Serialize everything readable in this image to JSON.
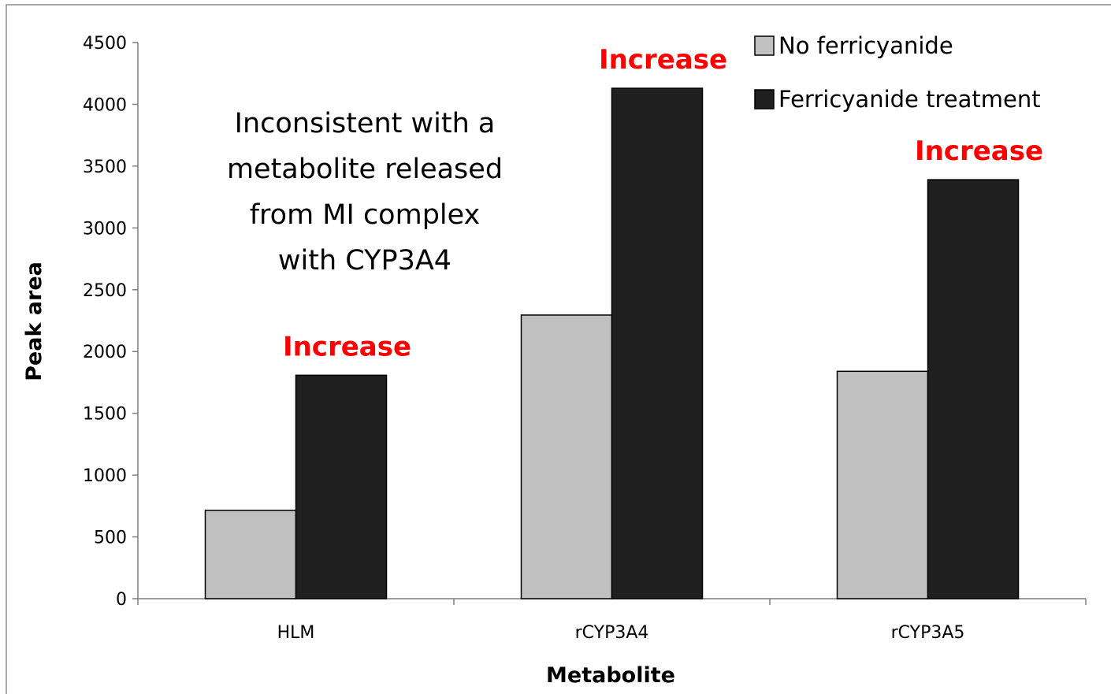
{
  "chart_data": {
    "type": "bar",
    "categories": [
      "HLM",
      "rCYP3A4",
      "rCYP3A5"
    ],
    "series": [
      {
        "name": "No ferricyanide",
        "values": [
          715,
          2295,
          1840
        ],
        "color": "#c0c0c0"
      },
      {
        "name": "Ferricyanide treatment",
        "values": [
          1808,
          4130,
          3390
        ],
        "color": "#1f1f1f"
      }
    ],
    "xlabel": "Metabolite",
    "ylabel": "Peak area",
    "ylim": [
      0,
      4500
    ],
    "yticks": [
      0,
      500,
      1000,
      1500,
      2000,
      2500,
      3000,
      3500,
      4000,
      4500
    ],
    "grid": false,
    "legend": {
      "placement": "top-right"
    },
    "annotations": [
      {
        "text": "Increase",
        "category": "HLM",
        "color": "#ff0000"
      },
      {
        "text": "Increase",
        "category": "rCYP3A4",
        "color": "#ff0000"
      },
      {
        "text": "Increase",
        "category": "rCYP3A5",
        "color": "#ff0000"
      }
    ],
    "note": {
      "lines": [
        "Inconsistent with a",
        "metabolite released",
        "from MI complex",
        "with CYP3A4"
      ]
    }
  }
}
